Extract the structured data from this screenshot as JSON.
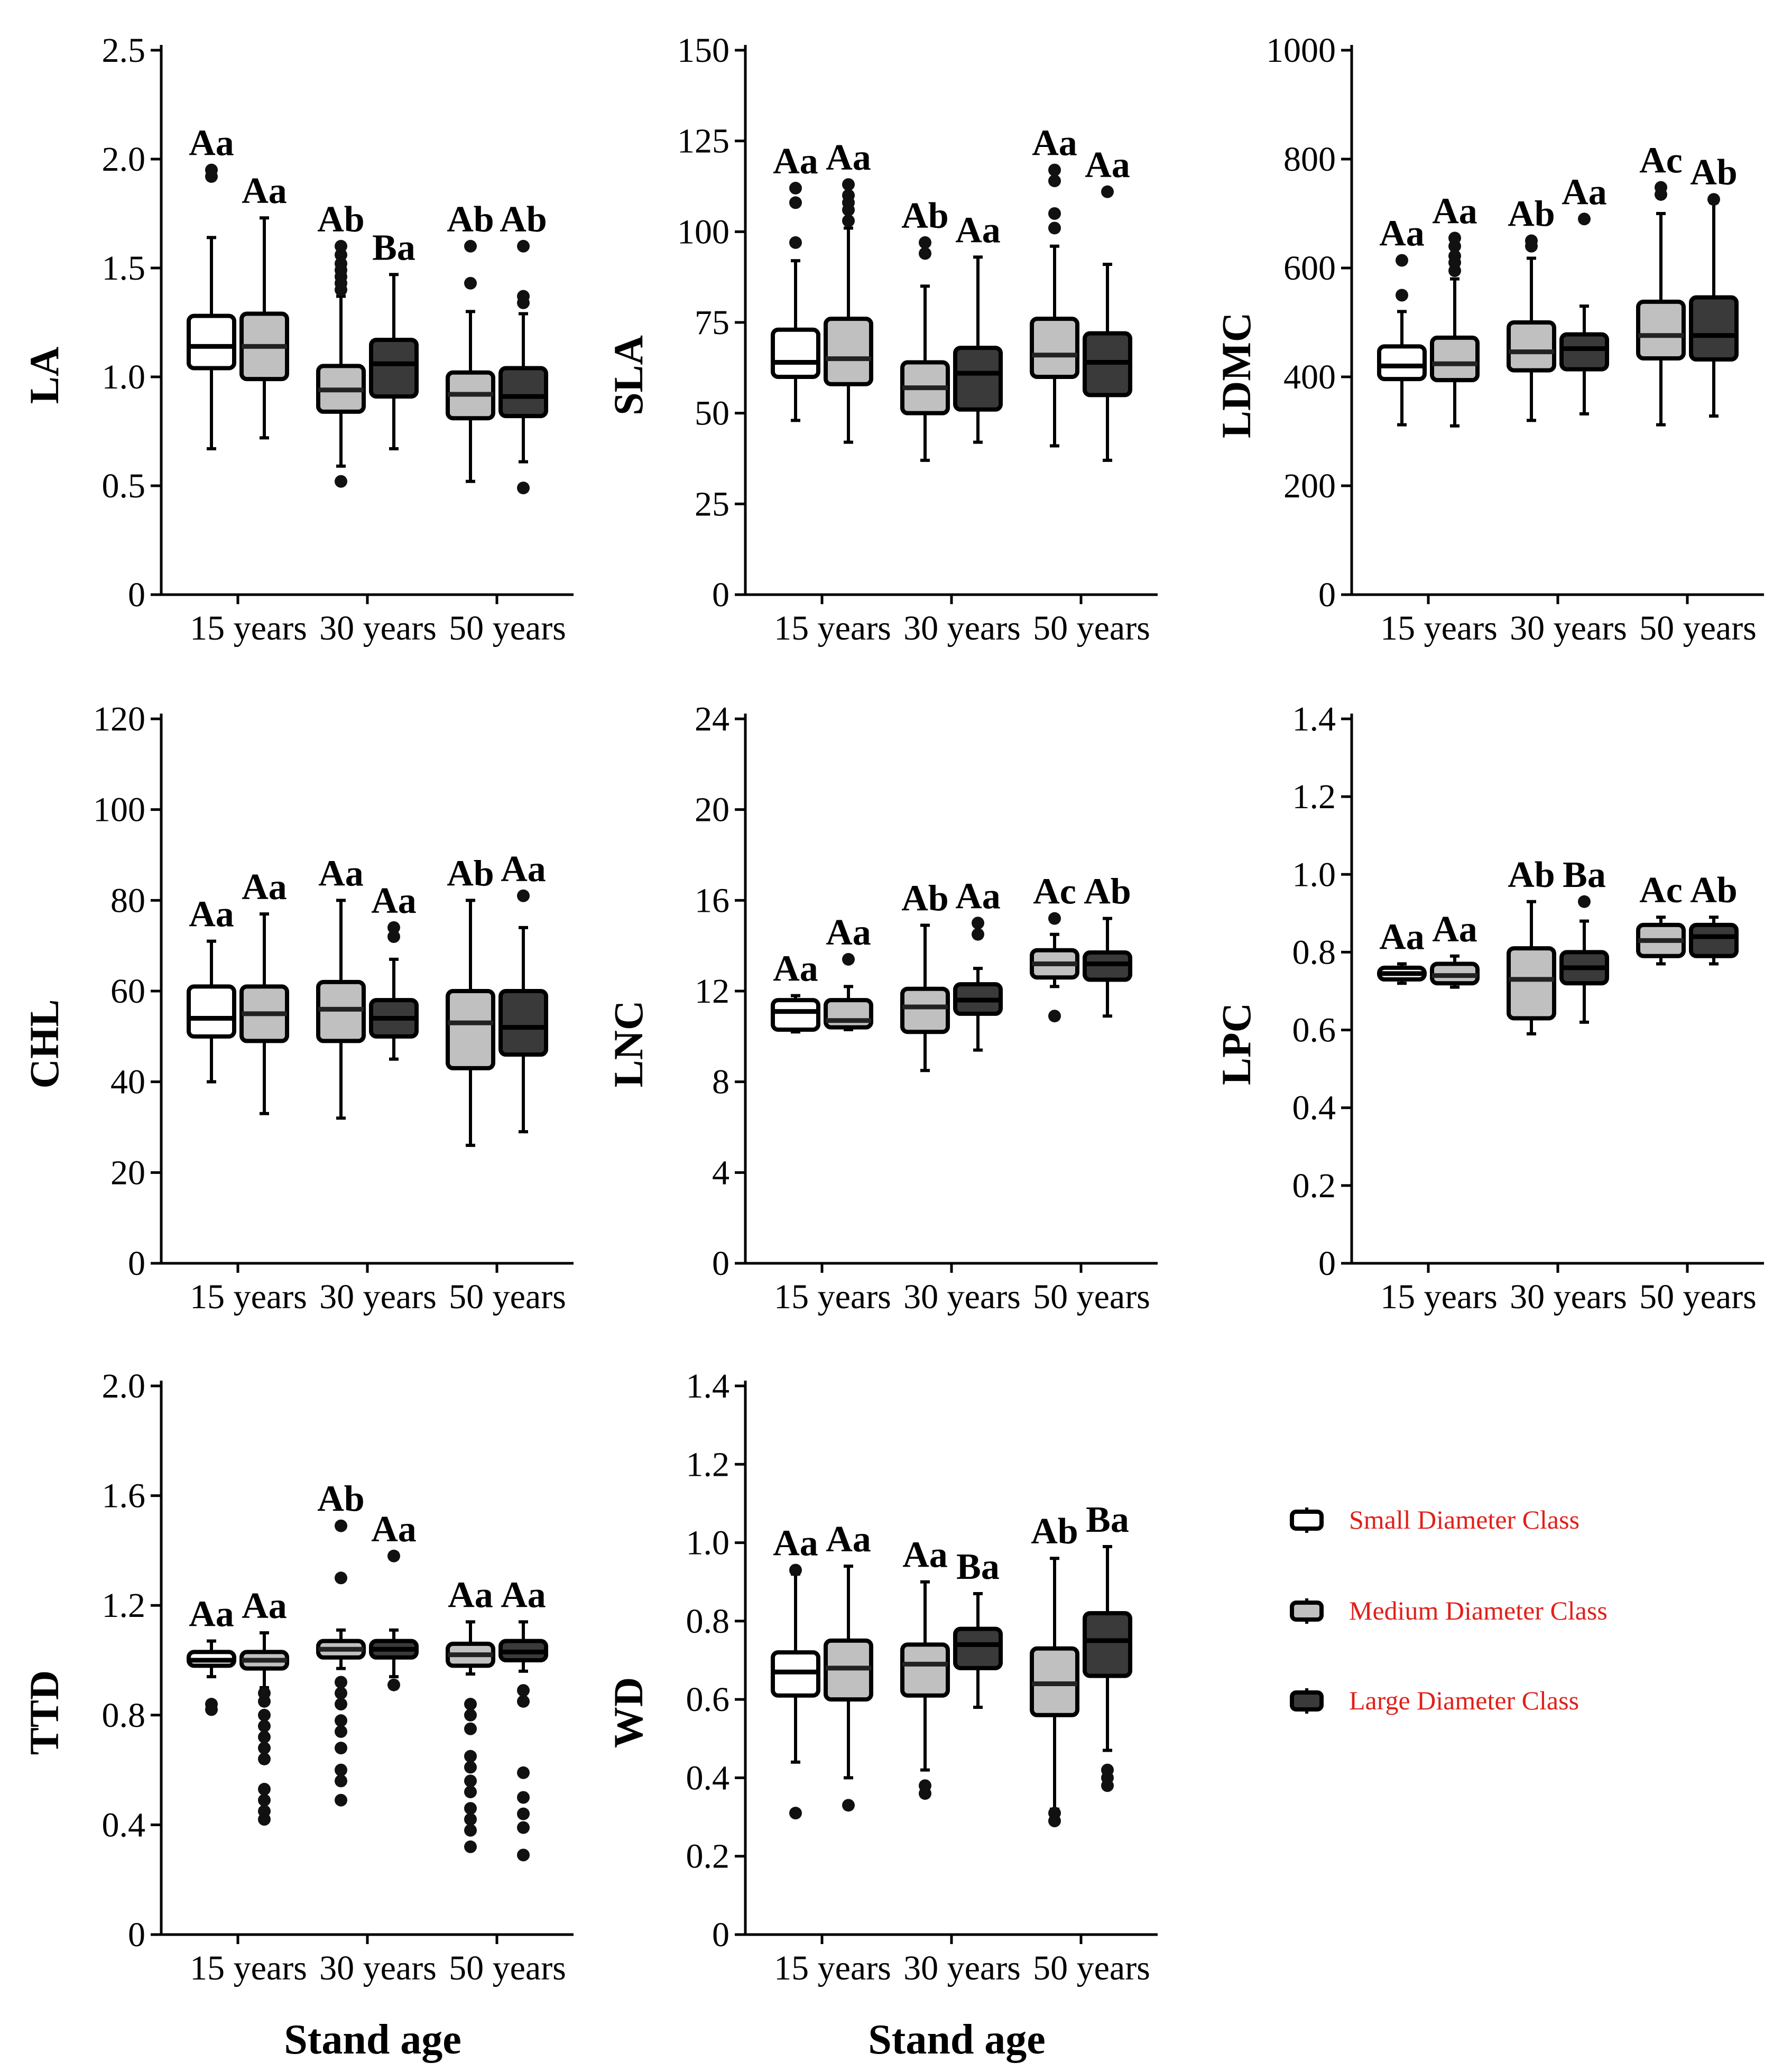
{
  "colors": {
    "small": "#ffffff",
    "medium": "#c0c0c0",
    "large": "#3a3a3a",
    "legend_text": "#e0201a"
  },
  "legend": {
    "small": "Small Diameter Class",
    "medium": "Medium Diameter Class",
    "large": "Large Diameter Class"
  },
  "chart_data": [
    {
      "type": "box",
      "title": "",
      "ylabel": "LA",
      "xlabel": "",
      "categories": [
        "15 years",
        "30 years",
        "50 years"
      ],
      "ylim": [
        0,
        2.5
      ],
      "yticks": [
        "0",
        "0.5",
        "1.0",
        "1.5",
        "2.0",
        "2.5"
      ],
      "series": [
        {
          "name": "Small Diameter Class",
          "boxes": [
            {
              "min": 0.67,
              "q1": 1.04,
              "median": 1.14,
              "q3": 1.28,
              "max": 1.64,
              "outliers": [
                1.92,
                1.95
              ],
              "label": "Aa"
            },
            null,
            null
          ]
        },
        {
          "name": "Medium Diameter Class",
          "boxes": [
            {
              "min": 0.72,
              "q1": 0.99,
              "median": 1.14,
              "q3": 1.29,
              "max": 1.73,
              "outliers": [],
              "label": "Aa"
            },
            {
              "min": 0.59,
              "q1": 0.84,
              "median": 0.94,
              "q3": 1.05,
              "max": 1.37,
              "outliers": [
                0.52,
                1.4,
                1.43,
                1.46,
                1.49,
                1.52,
                1.56,
                1.6
              ],
              "label": "Ab"
            },
            {
              "min": 0.52,
              "q1": 0.81,
              "median": 0.92,
              "q3": 1.02,
              "max": 1.3,
              "outliers": [
                1.43,
                1.6
              ],
              "label": "Ab"
            }
          ]
        },
        {
          "name": "Large Diameter Class",
          "boxes": [
            null,
            {
              "min": 0.67,
              "q1": 0.91,
              "median": 1.06,
              "q3": 1.17,
              "max": 1.47,
              "outliers": [],
              "label": "Ba"
            },
            {
              "min": 0.61,
              "q1": 0.82,
              "median": 0.91,
              "q3": 1.04,
              "max": 1.29,
              "outliers": [
                0.49,
                1.34,
                1.37,
                1.6
              ],
              "label": "Ab"
            }
          ]
        }
      ]
    },
    {
      "type": "box",
      "title": "",
      "ylabel": "SLA",
      "xlabel": "",
      "categories": [
        "15 years",
        "30 years",
        "50 years"
      ],
      "ylim": [
        0,
        150
      ],
      "yticks": [
        "0",
        "25",
        "50",
        "75",
        "100",
        "125",
        "150"
      ],
      "series": [
        {
          "name": "Small Diameter Class",
          "boxes": [
            {
              "min": 48,
              "q1": 60,
              "median": 64,
              "q3": 73,
              "max": 92,
              "outliers": [
                97,
                108,
                112
              ],
              "label": "Aa"
            },
            null,
            null
          ]
        },
        {
          "name": "Medium Diameter Class",
          "boxes": [
            {
              "min": 42,
              "q1": 58,
              "median": 65,
              "q3": 76,
              "max": 101,
              "outliers": [
                103,
                106,
                108,
                110,
                113
              ],
              "label": "Aa"
            },
            {
              "min": 37,
              "q1": 50,
              "median": 57,
              "q3": 64,
              "max": 85,
              "outliers": [
                94,
                97
              ],
              "label": "Ab"
            },
            {
              "min": 41,
              "q1": 60,
              "median": 66,
              "q3": 76,
              "max": 96,
              "outliers": [
                101,
                105,
                114,
                117
              ],
              "label": "Aa"
            }
          ]
        },
        {
          "name": "Large Diameter Class",
          "boxes": [
            null,
            {
              "min": 42,
              "q1": 51,
              "median": 61,
              "q3": 68,
              "max": 93,
              "outliers": [],
              "label": "Aa"
            },
            {
              "min": 37,
              "q1": 55,
              "median": 64,
              "q3": 72,
              "max": 91,
              "outliers": [
                111
              ],
              "label": "Aa"
            }
          ]
        }
      ]
    },
    {
      "type": "box",
      "title": "",
      "ylabel": "LDMC",
      "xlabel": "",
      "categories": [
        "15 years",
        "30 years",
        "50 years"
      ],
      "ylim": [
        0,
        1000
      ],
      "yticks": [
        "0",
        "200",
        "400",
        "600",
        "800",
        "1000"
      ],
      "series": [
        {
          "name": "Small Diameter Class",
          "boxes": [
            {
              "min": 312,
              "q1": 396,
              "median": 420,
              "q3": 456,
              "max": 520,
              "outliers": [
                550,
                614
              ],
              "label": "Aa"
            },
            null,
            null
          ]
        },
        {
          "name": "Medium Diameter Class",
          "boxes": [
            {
              "min": 310,
              "q1": 394,
              "median": 424,
              "q3": 472,
              "max": 580,
              "outliers": [
                595,
                610,
                622,
                640,
                655
              ],
              "label": "Aa"
            },
            {
              "min": 320,
              "q1": 412,
              "median": 446,
              "q3": 500,
              "max": 618,
              "outliers": [
                640,
                650
              ],
              "label": "Ab"
            },
            {
              "min": 312,
              "q1": 434,
              "median": 476,
              "q3": 538,
              "max": 700,
              "outliers": [
                735,
                748
              ],
              "label": "Ac"
            }
          ]
        },
        {
          "name": "Large Diameter Class",
          "boxes": [
            null,
            {
              "min": 332,
              "q1": 414,
              "median": 452,
              "q3": 478,
              "max": 530,
              "outliers": [
                690
              ],
              "label": "Aa"
            },
            {
              "min": 328,
              "q1": 432,
              "median": 476,
              "q3": 546,
              "max": 720,
              "outliers": [
                726
              ],
              "label": "Ab"
            }
          ]
        }
      ]
    },
    {
      "type": "box",
      "title": "",
      "ylabel": "CHL",
      "xlabel": "",
      "categories": [
        "15 years",
        "30 years",
        "50 years"
      ],
      "ylim": [
        0,
        120
      ],
      "yticks": [
        "0",
        "20",
        "40",
        "60",
        "80",
        "100",
        "120"
      ],
      "series": [
        {
          "name": "Small Diameter Class",
          "boxes": [
            {
              "min": 40,
              "q1": 50,
              "median": 54,
              "q3": 61,
              "max": 71,
              "outliers": [],
              "label": "Aa"
            },
            null,
            null
          ]
        },
        {
          "name": "Medium Diameter Class",
          "boxes": [
            {
              "min": 33,
              "q1": 49,
              "median": 55,
              "q3": 61,
              "max": 77,
              "outliers": [],
              "label": "Aa"
            },
            {
              "min": 32,
              "q1": 49,
              "median": 56,
              "q3": 62,
              "max": 80,
              "outliers": [],
              "label": "Aa"
            },
            {
              "min": 26,
              "q1": 43,
              "median": 53,
              "q3": 60,
              "max": 80,
              "outliers": [],
              "label": "Ab"
            }
          ]
        },
        {
          "name": "Large Diameter Class",
          "boxes": [
            null,
            {
              "min": 45,
              "q1": 50,
              "median": 54,
              "q3": 58,
              "max": 67,
              "outliers": [
                72,
                74
              ],
              "label": "Aa"
            },
            {
              "min": 29,
              "q1": 46,
              "median": 52,
              "q3": 60,
              "max": 74,
              "outliers": [
                81
              ],
              "label": "Aa"
            }
          ]
        }
      ]
    },
    {
      "type": "box",
      "title": "",
      "ylabel": "LNC",
      "xlabel": "",
      "categories": [
        "15 years",
        "30 years",
        "50 years"
      ],
      "ylim": [
        0,
        24
      ],
      "yticks": [
        "0",
        "4",
        "8",
        "12",
        "16",
        "20",
        "24"
      ],
      "series": [
        {
          "name": "Small Diameter Class",
          "boxes": [
            {
              "min": 10.2,
              "q1": 10.3,
              "median": 11.1,
              "q3": 11.6,
              "max": 11.8,
              "outliers": [],
              "label": "Aa"
            },
            null,
            null
          ]
        },
        {
          "name": "Medium Diameter Class",
          "boxes": [
            {
              "min": 10.3,
              "q1": 10.4,
              "median": 10.7,
              "q3": 11.6,
              "max": 12.2,
              "outliers": [
                13.4
              ],
              "label": "Aa"
            },
            {
              "min": 8.5,
              "q1": 10.2,
              "median": 11.3,
              "q3": 12.1,
              "max": 14.9,
              "outliers": [],
              "label": "Ab"
            },
            {
              "min": 12.2,
              "q1": 12.6,
              "median": 13.2,
              "q3": 13.8,
              "max": 14.5,
              "outliers": [
                10.9,
                15.2
              ],
              "label": "Ac"
            }
          ]
        },
        {
          "name": "Large Diameter Class",
          "boxes": [
            null,
            {
              "min": 9.4,
              "q1": 11.0,
              "median": 11.6,
              "q3": 12.3,
              "max": 13.0,
              "outliers": [
                14.5,
                15.0
              ],
              "label": "Aa"
            },
            {
              "min": 10.9,
              "q1": 12.5,
              "median": 13.2,
              "q3": 13.7,
              "max": 15.2,
              "outliers": [],
              "label": "Ab"
            }
          ]
        }
      ]
    },
    {
      "type": "box",
      "title": "",
      "ylabel": "LPC",
      "xlabel": "",
      "categories": [
        "15 years",
        "30 years",
        "50 years"
      ],
      "ylim": [
        0,
        1.4
      ],
      "yticks": [
        "0",
        "0.2",
        "0.4",
        "0.6",
        "0.8",
        "1.0",
        "1.2",
        "1.4"
      ],
      "series": [
        {
          "name": "Small Diameter Class",
          "boxes": [
            {
              "min": 0.72,
              "q1": 0.73,
              "median": 0.745,
              "q3": 0.76,
              "max": 0.77,
              "outliers": [],
              "label": "Aa"
            },
            null,
            null
          ]
        },
        {
          "name": "Medium Diameter Class",
          "boxes": [
            {
              "min": 0.71,
              "q1": 0.72,
              "median": 0.74,
              "q3": 0.77,
              "max": 0.79,
              "outliers": [],
              "label": "Aa"
            },
            {
              "min": 0.59,
              "q1": 0.63,
              "median": 0.73,
              "q3": 0.81,
              "max": 0.93,
              "outliers": [],
              "label": "Ab"
            },
            {
              "min": 0.77,
              "q1": 0.79,
              "median": 0.83,
              "q3": 0.87,
              "max": 0.89,
              "outliers": [],
              "label": "Ac"
            }
          ]
        },
        {
          "name": "Large Diameter Class",
          "boxes": [
            null,
            {
              "min": 0.62,
              "q1": 0.72,
              "median": 0.76,
              "q3": 0.8,
              "max": 0.88,
              "outliers": [
                0.93
              ],
              "label": "Ba"
            },
            {
              "min": 0.77,
              "q1": 0.79,
              "median": 0.84,
              "q3": 0.87,
              "max": 0.89,
              "outliers": [],
              "label": "Ab"
            }
          ]
        }
      ]
    },
    {
      "type": "box",
      "title": "",
      "ylabel": "TTD",
      "xlabel": "Stand age",
      "categories": [
        "15 years",
        "30 years",
        "50 years"
      ],
      "ylim": [
        0,
        2.0
      ],
      "yticks": [
        "0",
        "0.4",
        "0.8",
        "1.2",
        "1.6",
        "2.0"
      ],
      "series": [
        {
          "name": "Small Diameter Class",
          "boxes": [
            {
              "min": 0.94,
              "q1": 0.98,
              "median": 1.0,
              "q3": 1.03,
              "max": 1.07,
              "outliers": [
                0.82,
                0.84
              ],
              "label": "Aa"
            },
            null,
            null
          ]
        },
        {
          "name": "Medium Diameter Class",
          "boxes": [
            {
              "min": 0.9,
              "q1": 0.97,
              "median": 1.0,
              "q3": 1.03,
              "max": 1.1,
              "outliers": [
                0.42,
                0.45,
                0.49,
                0.53,
                0.64,
                0.68,
                0.72,
                0.76,
                0.8,
                0.85,
                0.88
              ],
              "label": "Aa"
            },
            {
              "min": 0.97,
              "q1": 1.01,
              "median": 1.04,
              "q3": 1.07,
              "max": 1.11,
              "outliers": [
                0.49,
                0.56,
                0.6,
                0.68,
                0.74,
                0.78,
                0.84,
                0.88,
                0.92,
                1.3,
                1.49
              ],
              "label": "Ab"
            },
            {
              "min": 0.95,
              "q1": 0.98,
              "median": 1.02,
              "q3": 1.06,
              "max": 1.14,
              "outliers": [
                0.32,
                0.38,
                0.42,
                0.46,
                0.52,
                0.56,
                0.61,
                0.65,
                0.75,
                0.8,
                0.84
              ],
              "label": "Aa"
            }
          ]
        },
        {
          "name": "Large Diameter Class",
          "boxes": [
            null,
            {
              "min": 0.94,
              "q1": 1.01,
              "median": 1.04,
              "q3": 1.07,
              "max": 1.11,
              "outliers": [
                0.91,
                1.38
              ],
              "label": "Aa"
            },
            {
              "min": 0.96,
              "q1": 1.0,
              "median": 1.03,
              "q3": 1.07,
              "max": 1.14,
              "outliers": [
                0.29,
                0.39,
                0.44,
                0.5,
                0.59,
                0.85,
                0.89
              ],
              "label": "Aa"
            }
          ]
        }
      ]
    },
    {
      "type": "box",
      "title": "",
      "ylabel": "WD",
      "xlabel": "Stand age",
      "categories": [
        "15 years",
        "30 years",
        "50 years"
      ],
      "ylim": [
        0,
        1.4
      ],
      "yticks": [
        "0",
        "0.2",
        "0.4",
        "0.6",
        "0.8",
        "1.0",
        "1.2",
        "1.4"
      ],
      "series": [
        {
          "name": "Small Diameter Class",
          "boxes": [
            {
              "min": 0.44,
              "q1": 0.61,
              "median": 0.67,
              "q3": 0.72,
              "max": 0.92,
              "outliers": [
                0.31,
                0.93
              ],
              "label": "Aa"
            },
            null,
            null
          ]
        },
        {
          "name": "Medium Diameter Class",
          "boxes": [
            {
              "min": 0.4,
              "q1": 0.6,
              "median": 0.68,
              "q3": 0.75,
              "max": 0.94,
              "outliers": [
                0.33
              ],
              "label": "Aa"
            },
            {
              "min": 0.42,
              "q1": 0.61,
              "median": 0.69,
              "q3": 0.74,
              "max": 0.9,
              "outliers": [
                0.36,
                0.38
              ],
              "label": "Aa"
            },
            {
              "min": 0.32,
              "q1": 0.56,
              "median": 0.64,
              "q3": 0.73,
              "max": 0.96,
              "outliers": [
                0.29,
                0.31
              ],
              "label": "Ab"
            }
          ]
        },
        {
          "name": "Large Diameter Class",
          "boxes": [
            null,
            {
              "min": 0.58,
              "q1": 0.68,
              "median": 0.74,
              "q3": 0.78,
              "max": 0.87,
              "outliers": [],
              "label": "Ba"
            },
            {
              "min": 0.47,
              "q1": 0.66,
              "median": 0.75,
              "q3": 0.82,
              "max": 0.99,
              "outliers": [
                0.38,
                0.4,
                0.42
              ],
              "label": "Ba"
            }
          ]
        }
      ]
    }
  ]
}
